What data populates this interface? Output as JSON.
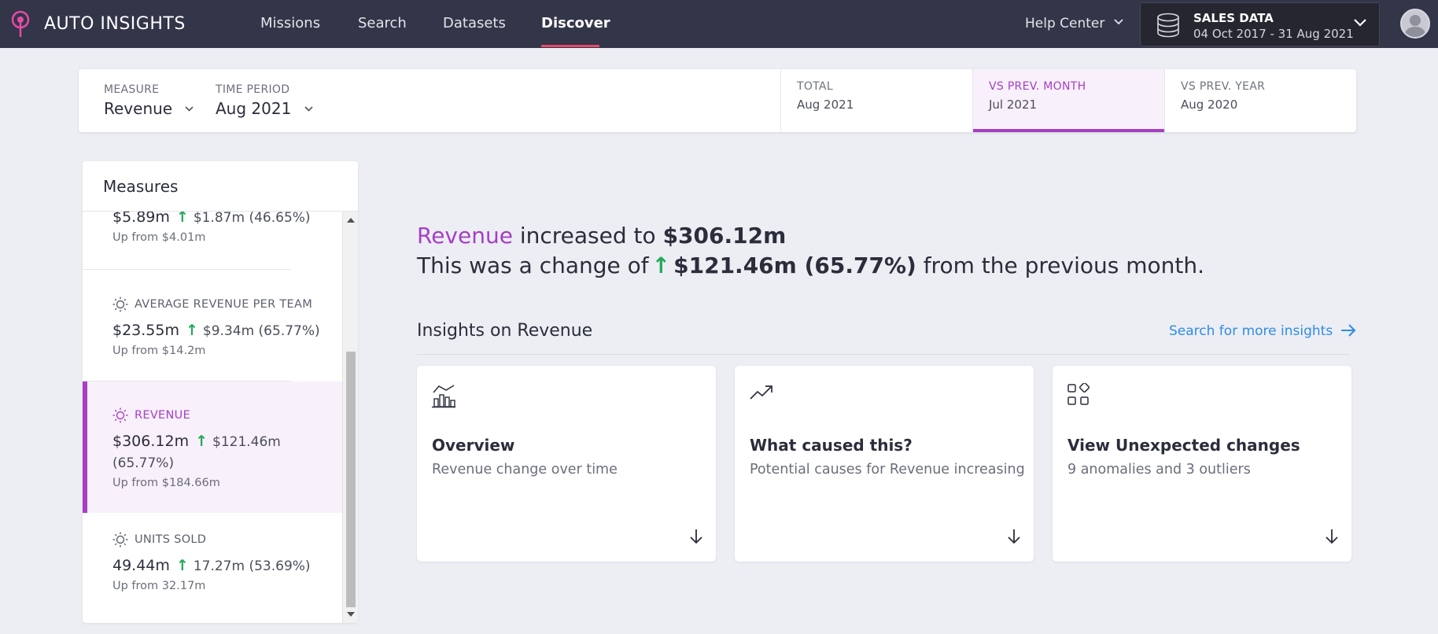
{
  "app": {
    "brand": "AUTO INSIGHTS"
  },
  "nav": {
    "items": [
      {
        "label": "Missions"
      },
      {
        "label": "Search"
      },
      {
        "label": "Datasets"
      },
      {
        "label": "Discover"
      }
    ],
    "help_label": "Help Center"
  },
  "dataset": {
    "title": "SALES DATA",
    "range": "04 Oct 2017 - 31 Aug 2021"
  },
  "filters": {
    "measure": {
      "label": "MEASURE",
      "value": "Revenue"
    },
    "period": {
      "label": "TIME PERIOD",
      "value": "Aug 2021"
    }
  },
  "compare_tabs": [
    {
      "label": "TOTAL",
      "value": "Aug 2021"
    },
    {
      "label": "VS PREV. MONTH",
      "value": "Jul 2021"
    },
    {
      "label": "VS PREV. YEAR",
      "value": "Aug 2020"
    }
  ],
  "measures_panel": {
    "title": "Measures",
    "items": [
      {
        "name": "",
        "value": "$5.89m",
        "delta": "$1.87m (46.65%)",
        "sub": "Up from $4.01m"
      },
      {
        "name": "AVERAGE REVENUE PER TEAM",
        "value": "$23.55m",
        "delta": "$9.34m (65.77%)",
        "sub": "Up from $14.2m"
      },
      {
        "name": "REVENUE",
        "value": "$306.12m",
        "delta": "$121.46m",
        "delta2": "(65.77%)",
        "sub": "Up from $184.66m"
      },
      {
        "name": "UNITS SOLD",
        "value": "49.44m",
        "delta": "17.27m (53.69%)",
        "sub": "Up from 32.17m"
      }
    ]
  },
  "headline": {
    "measure": "Revenue",
    "text1": "increased to",
    "value": "$306.12m",
    "text2": "This was a change of",
    "change": "$121.46m (65.77%)",
    "text3": "from the previous month."
  },
  "insights": {
    "title": "Insights on Revenue",
    "search_link": "Search for more insights",
    "cards": [
      {
        "icon": "chart-overview-icon",
        "title": "Overview",
        "desc": "Revenue change over time"
      },
      {
        "icon": "trending-up-icon",
        "title": "What caused this?",
        "desc": "Potential causes for Revenue increasing"
      },
      {
        "icon": "grid-squares-icon",
        "title": "View Unexpected changes",
        "desc": "9 anomalies and 3 outliers"
      }
    ]
  },
  "colors": {
    "accent": "#a540c4",
    "positive": "#22a957",
    "link": "#2f8be6",
    "nav_bg": "#333549",
    "nav_active": "#e84a6a"
  }
}
